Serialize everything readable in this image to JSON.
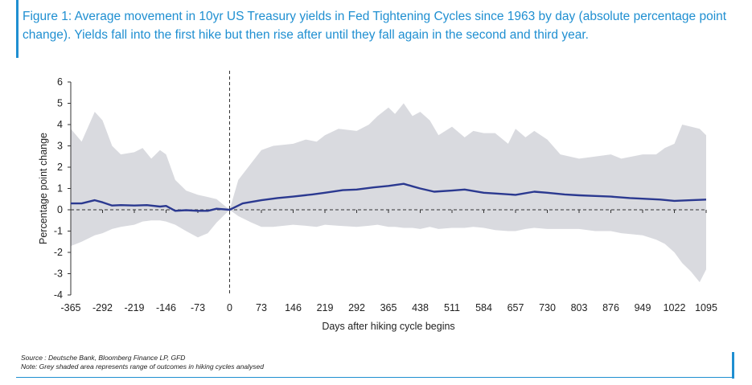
{
  "header": {
    "title": "Figure 1: Average movement in 10yr US Treasury yields in Fed Tightening Cycles since 1963 by day (absolute percentage point change). Yields fall into the first hike but then rise after until they fall again in the second and third year."
  },
  "footer": {
    "source": "Source : Deutsche Bank, Bloomberg Finance LP, GFD",
    "note": "Note: Grey shaded area represents range of outcomes in hiking cycles analysed"
  },
  "colors": {
    "accent": "#1f8fd1",
    "line": "#2b3990",
    "band": "#d9dadf"
  },
  "chart_data": {
    "type": "line",
    "xlabel": "Days after hiking cycle begins",
    "ylabel": "Percentage point change",
    "xlim": [
      -365,
      1095
    ],
    "ylim": [
      -4,
      6
    ],
    "xticks": [
      -365,
      -292,
      -219,
      -146,
      -73,
      0,
      73,
      146,
      219,
      292,
      365,
      438,
      511,
      584,
      657,
      730,
      803,
      876,
      949,
      1022,
      1095
    ],
    "yticks": [
      -4,
      -3,
      -2,
      -1,
      0,
      1,
      2,
      3,
      4,
      5,
      6
    ],
    "reference_line_x": 0,
    "series": [
      {
        "kind": "line",
        "x": [
          -365,
          -340,
          -310,
          -292,
          -270,
          -250,
          -219,
          -190,
          -160,
          -146,
          -125,
          -100,
          -73,
          -50,
          -30,
          0,
          30,
          73,
          110,
          146,
          190,
          219,
          260,
          292,
          330,
          365,
          400,
          420,
          438,
          470,
          511,
          540,
          584,
          620,
          657,
          700,
          730,
          770,
          803,
          840,
          876,
          920,
          949,
          990,
          1022,
          1060,
          1095
        ],
        "y": [
          0.3,
          0.3,
          0.45,
          0.35,
          0.2,
          0.22,
          0.2,
          0.22,
          0.15,
          0.18,
          -0.05,
          -0.02,
          -0.05,
          -0.05,
          0.05,
          0.0,
          0.3,
          0.45,
          0.55,
          0.62,
          0.72,
          0.8,
          0.92,
          0.95,
          1.05,
          1.12,
          1.22,
          1.1,
          1.0,
          0.85,
          0.9,
          0.95,
          0.8,
          0.75,
          0.7,
          0.85,
          0.8,
          0.72,
          0.68,
          0.65,
          0.62,
          0.55,
          0.52,
          0.48,
          0.42,
          0.45,
          0.48
        ]
      },
      {
        "kind": "range",
        "x": [
          -365,
          -340,
          -310,
          -292,
          -270,
          -250,
          -219,
          -200,
          -180,
          -160,
          -146,
          -125,
          -100,
          -73,
          -50,
          -30,
          0,
          20,
          50,
          73,
          100,
          146,
          175,
          200,
          219,
          250,
          292,
          320,
          340,
          365,
          380,
          400,
          420,
          438,
          460,
          480,
          511,
          540,
          560,
          584,
          610,
          640,
          657,
          680,
          700,
          730,
          760,
          803,
          840,
          876,
          900,
          949,
          980,
          1000,
          1022,
          1040,
          1060,
          1080,
          1095
        ],
        "high": [
          3.8,
          3.2,
          4.6,
          4.2,
          3.0,
          2.6,
          2.7,
          2.9,
          2.4,
          2.8,
          2.6,
          1.4,
          0.9,
          0.7,
          0.6,
          0.5,
          0.0,
          1.4,
          2.2,
          2.8,
          3.0,
          3.1,
          3.3,
          3.2,
          3.5,
          3.8,
          3.7,
          4.0,
          4.4,
          4.8,
          4.5,
          5.0,
          4.4,
          4.6,
          4.2,
          3.5,
          3.9,
          3.4,
          3.7,
          3.6,
          3.6,
          3.1,
          3.8,
          3.4,
          3.7,
          3.3,
          2.6,
          2.4,
          2.5,
          2.6,
          2.4,
          2.6,
          2.6,
          2.9,
          3.1,
          4.0,
          3.9,
          3.8,
          3.5
        ],
        "low": [
          -1.7,
          -1.5,
          -1.2,
          -1.1,
          -0.9,
          -0.8,
          -0.7,
          -0.55,
          -0.5,
          -0.5,
          -0.55,
          -0.7,
          -1.0,
          -1.3,
          -1.1,
          -0.6,
          0.0,
          -0.3,
          -0.6,
          -0.8,
          -0.8,
          -0.7,
          -0.75,
          -0.8,
          -0.7,
          -0.75,
          -0.8,
          -0.75,
          -0.7,
          -0.8,
          -0.8,
          -0.85,
          -0.85,
          -0.9,
          -0.8,
          -0.9,
          -0.85,
          -0.85,
          -0.8,
          -0.85,
          -0.95,
          -1.0,
          -1.0,
          -0.9,
          -0.85,
          -0.9,
          -0.9,
          -0.9,
          -1.0,
          -1.0,
          -1.1,
          -1.2,
          -1.4,
          -1.6,
          -2.0,
          -2.5,
          -2.9,
          -3.4,
          -2.8
        ]
      }
    ],
    "legend": "none"
  }
}
